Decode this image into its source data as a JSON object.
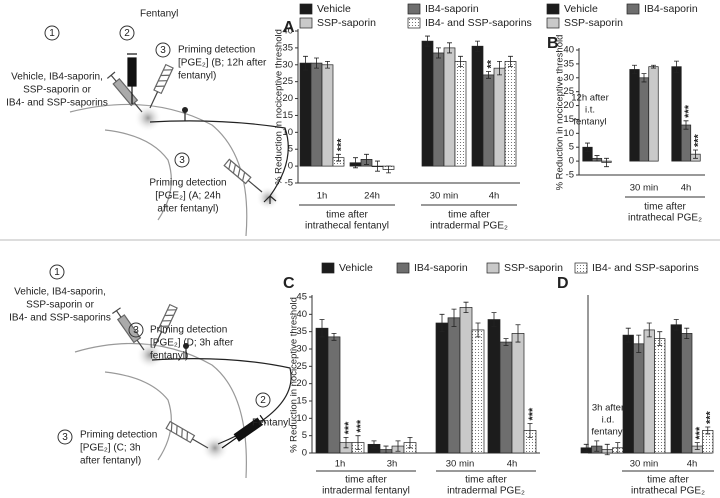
{
  "chart_data": [
    {
      "type": "bar",
      "panel": "A",
      "y_label": "% Reduction in nociceptive threshold",
      "ylim": [
        -5,
        40
      ],
      "yticks": [
        -5,
        0,
        5,
        10,
        15,
        20,
        25,
        30,
        35,
        40
      ],
      "category_groups": [
        {
          "label": [
            "time after",
            "intrathecal fentanyl"
          ],
          "categories": [
            "1h",
            "24h"
          ]
        },
        {
          "label": [
            "time after",
            "intradermal PGE₂"
          ],
          "categories": [
            "30 min",
            "4h"
          ]
        }
      ],
      "series": [
        {
          "name": "Vehicle",
          "color": "#1c1c1c",
          "values": [
            30.5,
            1,
            37,
            35.5
          ],
          "errors": [
            2,
            1.5,
            1.5,
            1.5
          ]
        },
        {
          "name": "IB4-saporin",
          "color": "#6e6e6e",
          "values": [
            30.5,
            2,
            33.5,
            27
          ],
          "errors": [
            1.5,
            1.5,
            1.5,
            1
          ],
          "significance": [
            null,
            null,
            null,
            "**"
          ]
        },
        {
          "name": "SSP-saporin",
          "color": "#c9c9c9",
          "values": [
            30,
            0,
            35,
            29
          ],
          "errors": [
            1,
            1.5,
            1.5,
            2
          ]
        },
        {
          "name": "IB4- and SSP-saporins",
          "color": "#ffffff",
          "pattern": "dotted",
          "values": [
            2.5,
            -1,
            31,
            31
          ],
          "errors": [
            1,
            1,
            1.5,
            1.5
          ],
          "significance": [
            "***",
            null,
            null,
            null
          ]
        }
      ]
    },
    {
      "type": "bar",
      "panel": "B",
      "y_label": "% Reduction in nociceptive threshold",
      "ylim": [
        -5,
        40
      ],
      "yticks": [
        -5,
        0,
        5,
        10,
        15,
        20,
        25,
        30,
        35,
        40
      ],
      "note": [
        "12h after",
        "i.t.",
        "fentanyl"
      ],
      "category_groups": [
        {
          "categories": [
            null
          ]
        },
        {
          "label": [
            "time after",
            "intrathecal PGE₂"
          ],
          "categories": [
            "30 min",
            "4h"
          ]
        }
      ],
      "series": [
        {
          "name": "Vehicle",
          "color": "#1c1c1c",
          "values": [
            5,
            33,
            34
          ],
          "errors": [
            1.5,
            1.5,
            2
          ]
        },
        {
          "name": "IB4-saporin",
          "color": "#6e6e6e",
          "values": [
            1,
            30,
            13
          ],
          "errors": [
            1,
            1.5,
            1.5
          ],
          "significance": [
            null,
            null,
            "***"
          ]
        },
        {
          "name": "SSP-saporin",
          "color": "#c9c9c9",
          "values": [
            -0.5,
            34,
            2.5
          ],
          "errors": [
            1.5,
            0.5,
            1.5
          ],
          "significance": [
            null,
            null,
            "***"
          ]
        }
      ]
    },
    {
      "type": "bar",
      "panel": "C",
      "y_label": "% Reduction in nociceptive threshold",
      "ylim": [
        0,
        45
      ],
      "yticks": [
        0,
        5,
        10,
        15,
        20,
        25,
        30,
        35,
        40,
        45
      ],
      "category_groups": [
        {
          "label": [
            "time after",
            "intradermal fentanyl"
          ],
          "categories": [
            "1h",
            "3h"
          ]
        },
        {
          "label": [
            "time after",
            "intradermal PGE₂"
          ],
          "categories": [
            "30 min",
            "4h"
          ]
        }
      ],
      "series": [
        {
          "name": "Vehicle",
          "color": "#1c1c1c",
          "values": [
            36,
            2.5,
            37.5,
            38.5
          ],
          "errors": [
            2.5,
            1,
            2.5,
            2
          ]
        },
        {
          "name": "IB4-saporin",
          "color": "#6e6e6e",
          "values": [
            33.5,
            1,
            39,
            32
          ],
          "errors": [
            1,
            1,
            2.5,
            1
          ]
        },
        {
          "name": "SSP-saporin",
          "color": "#c9c9c9",
          "values": [
            3,
            2,
            42,
            34.5
          ],
          "errors": [
            1.5,
            1.5,
            1.5,
            2.5
          ],
          "significance": [
            "***",
            null,
            null,
            null
          ]
        },
        {
          "name": "IB4- and SSP-saporins",
          "color": "#ffffff",
          "pattern": "dotted",
          "values": [
            3,
            3,
            35.5,
            6.5
          ],
          "errors": [
            2,
            1.5,
            2,
            2
          ],
          "significance": [
            "***",
            null,
            null,
            "***"
          ]
        }
      ]
    },
    {
      "type": "bar",
      "panel": "D",
      "ylim": [
        0,
        45
      ],
      "note": [
        "3h after",
        "i.d.",
        "fentanyl"
      ],
      "category_groups": [
        {
          "categories": [
            null
          ]
        },
        {
          "label": [
            "time after",
            "intrathecal PGE₂"
          ],
          "categories": [
            "30 min",
            "4h"
          ]
        }
      ],
      "series": [
        {
          "color": "#1c1c1c",
          "values": [
            1.5,
            34,
            37
          ],
          "errors": [
            1,
            2,
            1.5
          ]
        },
        {
          "color": "#6e6e6e",
          "values": [
            2,
            31.5,
            34.5
          ],
          "errors": [
            1.5,
            2.5,
            1.5
          ]
        },
        {
          "color": "#c9c9c9",
          "values": [
            1,
            35.5,
            2
          ],
          "errors": [
            1.5,
            2,
            1
          ],
          "significance": [
            null,
            null,
            "***"
          ]
        },
        {
          "color": "#ffffff",
          "pattern": "dotted",
          "values": [
            1.5,
            33,
            6.5
          ],
          "errors": [
            1.5,
            2,
            1
          ],
          "significance": [
            null,
            null,
            "***"
          ]
        }
      ]
    }
  ],
  "diagrams": [
    {
      "steps": [
        {
          "number": "1",
          "lines": [
            "Vehicle, IB4-saporin,",
            "SSP-saporin or",
            "IB4- and SSP-saporins"
          ]
        },
        {
          "number": "2",
          "lines": [
            "Fentanyl"
          ]
        },
        {
          "number": "3",
          "lines": [
            "Priming detection",
            "[PGE₂] (B; 12h after",
            "fentanyl)"
          ]
        },
        {
          "number": "3",
          "lines": [
            "Priming detection",
            "[PGE₂] (A; 24h",
            "after fentanyl)"
          ]
        }
      ]
    },
    {
      "steps": [
        {
          "number": "1",
          "lines": [
            "Vehicle, IB4-saporin,",
            "SSP-saporin or",
            "IB4- and SSP-saporins"
          ]
        },
        {
          "number": "3",
          "lines": [
            "Priming detection",
            "[PGE₂] (D; 3h after",
            "fentanyl)"
          ]
        },
        {
          "number": "2",
          "lines": [
            "Fentanyl"
          ]
        },
        {
          "number": "3",
          "lines": [
            "Priming detection",
            "[PGE₂] (C; 3h",
            "after fentanyl)"
          ]
        }
      ]
    }
  ]
}
